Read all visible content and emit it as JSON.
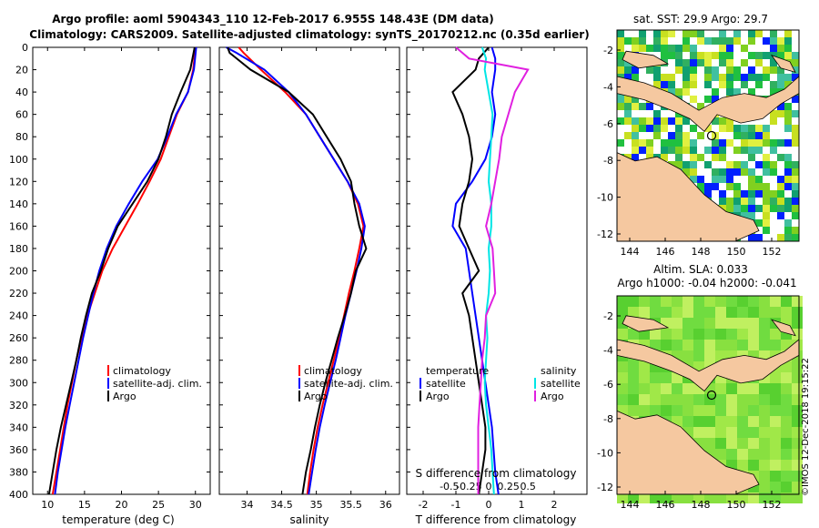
{
  "header": {
    "line1": "Argo profile: aoml 5904343_110 12-Feb-2017 6.955S 148.43E (DM data)",
    "line2": "Climatology: CARS2009. Satellite-adjusted climatology: synTS_20170212.nc (0.35d earlier)"
  },
  "colors": {
    "climatology": "#ff0000",
    "satellite": "#0000ff",
    "argo": "#000000",
    "satellite_salinity": "#00e5e5",
    "argo_salinity": "#e020e0",
    "land": "#f5c8a0"
  },
  "chart_data": [
    {
      "type": "line",
      "name": "temperature-profile",
      "xlabel": "temperature (deg C)",
      "ylabel": "",
      "xlim": [
        8,
        32
      ],
      "ylim": [
        400,
        0
      ],
      "xticks": [
        10,
        15,
        20,
        25,
        30
      ],
      "yticks": [
        0,
        20,
        40,
        60,
        80,
        100,
        120,
        140,
        160,
        180,
        200,
        220,
        240,
        260,
        280,
        300,
        320,
        340,
        360,
        380,
        400
      ],
      "legend": [
        "climatology",
        "satellite-adj. clim.",
        "Argo"
      ],
      "depth": [
        0,
        20,
        40,
        60,
        80,
        100,
        120,
        140,
        160,
        180,
        200,
        220,
        240,
        260,
        280,
        300,
        320,
        340,
        360,
        380,
        400
      ],
      "series": [
        {
          "name": "climatology",
          "values": [
            30,
            29.7,
            29,
            27.5,
            26.4,
            25.3,
            23.8,
            22.2,
            20.5,
            18.8,
            17.4,
            16.4,
            15.4,
            14.6,
            13.9,
            13.3,
            12.7,
            12.2,
            11.7,
            11.2,
            10.7
          ]
        },
        {
          "name": "satellite-adj. clim.",
          "values": [
            30.1,
            29.8,
            29,
            27.4,
            26.2,
            24.9,
            22.8,
            21,
            19.3,
            18,
            17,
            16.2,
            15.5,
            14.8,
            14.2,
            13.6,
            13,
            12.4,
            11.9,
            11.4,
            11
          ]
        },
        {
          "name": "Argo",
          "values": [
            29.9,
            29.3,
            28,
            26.8,
            26,
            25,
            23.5,
            21.5,
            19.5,
            18.2,
            17.2,
            16,
            15.2,
            14.5,
            13.9,
            13.2,
            12.5,
            11.8,
            11.2,
            10.7,
            10.2
          ]
        }
      ]
    },
    {
      "type": "line",
      "name": "salinity-profile",
      "xlabel": "salinity",
      "ylabel": "",
      "xlim": [
        33.6,
        36.2
      ],
      "ylim": [
        400,
        0
      ],
      "xticks": [
        34,
        34.5,
        35,
        35.5,
        36
      ],
      "legend": [
        "climatology",
        "satellite-adj. clim.",
        "Argo"
      ],
      "depth": [
        0,
        5,
        20,
        40,
        60,
        80,
        100,
        120,
        140,
        160,
        180,
        200,
        220,
        240,
        260,
        280,
        300,
        320,
        340,
        360,
        380,
        400
      ],
      "series": [
        {
          "name": "climatology",
          "values": [
            33.88,
            33.95,
            34.2,
            34.55,
            34.85,
            35.05,
            35.25,
            35.45,
            35.6,
            35.68,
            35.62,
            35.55,
            35.47,
            35.4,
            35.33,
            35.25,
            35.17,
            35.09,
            35.02,
            34.96,
            34.91,
            34.87
          ]
        },
        {
          "name": "satellite-adj. clim.",
          "values": [
            33.7,
            33.85,
            34.25,
            34.6,
            34.85,
            35.05,
            35.25,
            35.45,
            35.62,
            35.7,
            35.65,
            35.58,
            35.5,
            35.42,
            35.35,
            35.28,
            35.2,
            35.12,
            35.05,
            34.99,
            34.94,
            34.89
          ]
        },
        {
          "name": "Argo",
          "values": [
            33.72,
            33.75,
            34.05,
            34.6,
            34.95,
            35.15,
            35.35,
            35.5,
            35.55,
            35.62,
            35.72,
            35.57,
            35.5,
            35.41,
            35.31,
            35.22,
            35.13,
            35.05,
            34.98,
            34.92,
            34.85,
            34.8
          ]
        }
      ]
    },
    {
      "type": "line",
      "name": "difference-profile",
      "xlabel": "T difference from climatology",
      "top_axis_label": "S difference from climatology",
      "xlim": [
        -2.5,
        3
      ],
      "ylim": [
        400,
        0
      ],
      "xticks": [
        -2,
        -1,
        0,
        1,
        2
      ],
      "sticks": [
        -0.5,
        -0.25,
        0,
        0.25,
        0.5
      ],
      "legend": {
        "temperature_title": "temperature",
        "salinity_title": "salinity",
        "satellite": "satellite",
        "argo": "Argo"
      },
      "depth": [
        0,
        10,
        20,
        40,
        60,
        80,
        100,
        120,
        140,
        160,
        180,
        200,
        220,
        240,
        260,
        280,
        300,
        320,
        340,
        360,
        380,
        400
      ],
      "series": [
        {
          "name": "temperature satellite",
          "values": [
            0.1,
            0.2,
            0.2,
            0.1,
            0.2,
            0.1,
            -0.1,
            -0.5,
            -1,
            -1.1,
            -0.7,
            -0.6,
            -0.5,
            -0.4,
            -0.3,
            -0.2,
            -0.1,
            0,
            0.1,
            0.15,
            0.2,
            0.3
          ]
        },
        {
          "name": "temperature Argo",
          "values": [
            0,
            -0.3,
            -0.4,
            -1.1,
            -0.8,
            -0.6,
            -0.5,
            -0.6,
            -0.8,
            -0.9,
            -0.6,
            -0.3,
            -0.8,
            -0.6,
            -0.5,
            -0.4,
            -0.3,
            -0.2,
            -0.1,
            -0.1,
            -0.2,
            -0.3
          ]
        },
        {
          "name": "salinity satellite",
          "values": [
            -0.05,
            -0.02,
            -0.03,
            0,
            0.03,
            0.02,
            0.01,
            0,
            0.02,
            0.02,
            0,
            0.01,
            0,
            -0.02,
            -0.01,
            -0.02,
            -0.03,
            -0.02,
            0,
            0.02,
            0.03,
            0.04
          ]
        },
        {
          "name": "salinity Argo",
          "values": [
            -0.25,
            -0.15,
            0.3,
            0.2,
            0.15,
            0.1,
            0.08,
            0.05,
            0.02,
            -0.02,
            0.03,
            0.04,
            0.05,
            -0.02,
            -0.03,
            -0.05,
            -0.06,
            -0.07,
            -0.08,
            -0.08,
            -0.08,
            -0.08
          ]
        }
      ]
    }
  ],
  "sst_map": {
    "title": "sat. SST: 29.9 Argo: 29.7",
    "xticks": [
      "144",
      "146",
      "148",
      "150",
      "152"
    ],
    "yticks": [
      "-2",
      "-4",
      "-6",
      "-8",
      "-10",
      "-12"
    ]
  },
  "sla_map": {
    "title1": "Altim. SLA: 0.033",
    "title2": "Argo h1000: -0.04 h2000: -0.041",
    "xticks": [
      "144",
      "146",
      "148",
      "150",
      "152"
    ],
    "yticks": [
      "-2",
      "-4",
      "-6",
      "-8",
      "-10",
      "-12"
    ]
  },
  "stamp": "©IMOS 12-Dec-2018 19:15:22"
}
